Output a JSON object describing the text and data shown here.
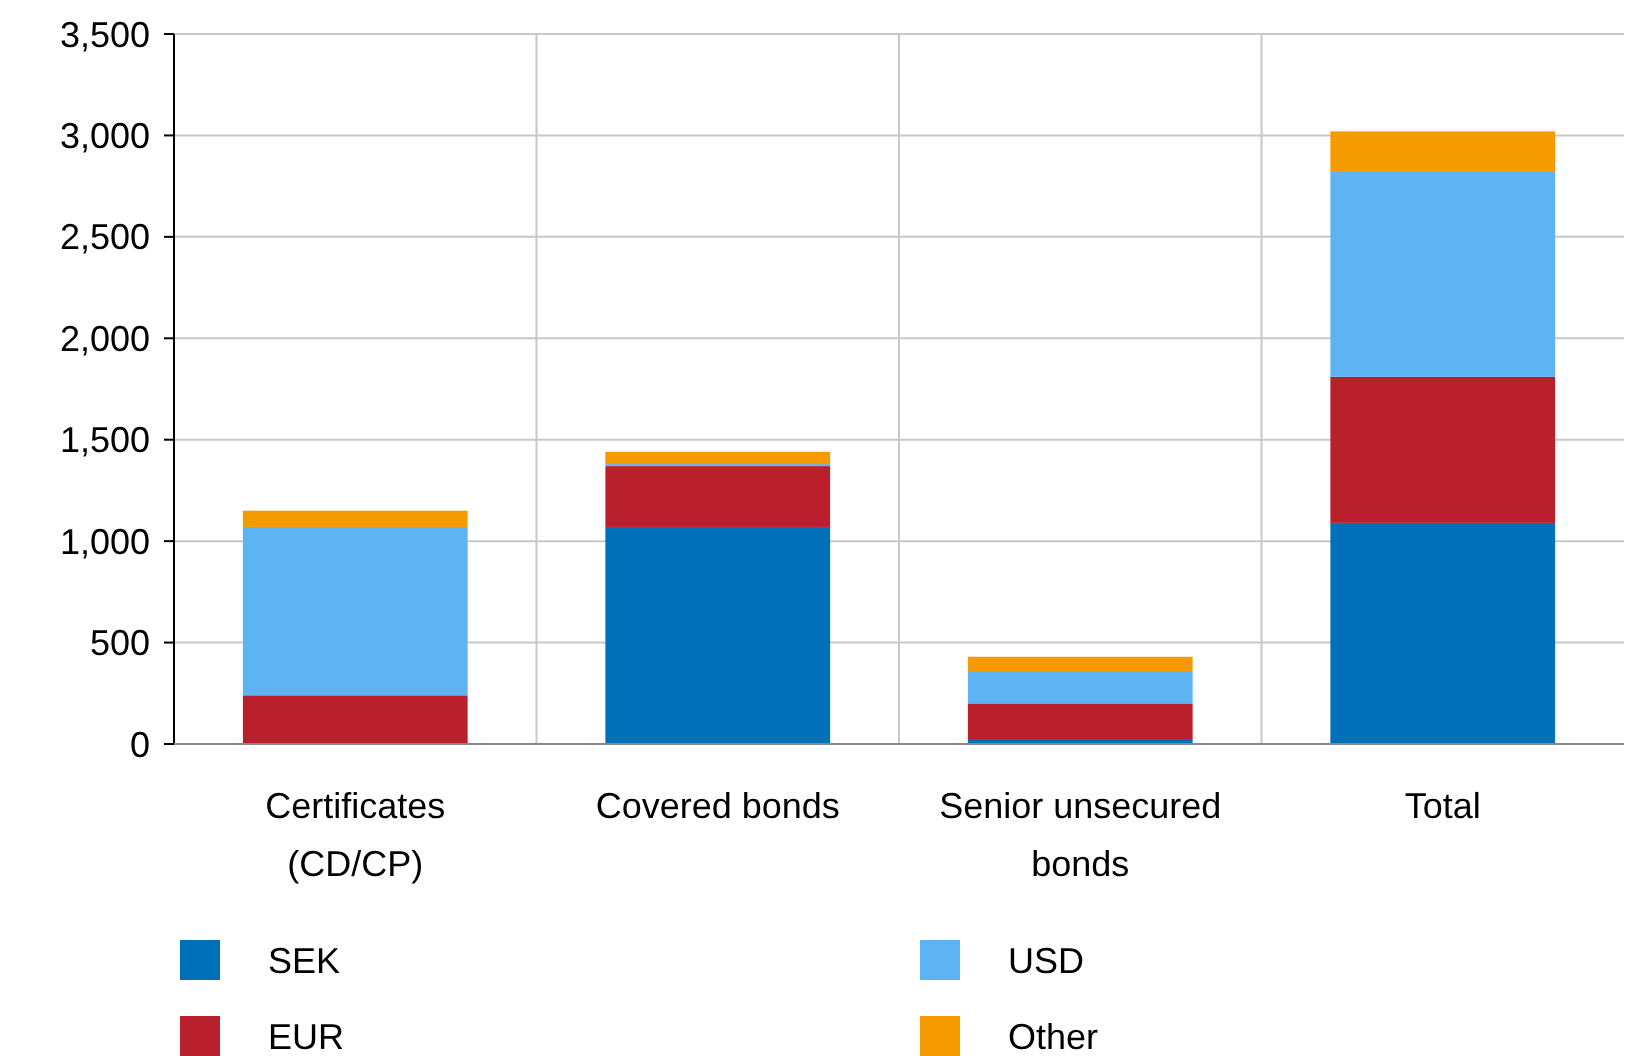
{
  "chart_data": {
    "type": "bar",
    "stacked": true,
    "categories": [
      "Certificates (CD/CP)",
      "Covered bonds",
      "Senior unsecured bonds",
      "Total"
    ],
    "series": [
      {
        "name": "SEK",
        "color": "#0070b8",
        "values": [
          0,
          1070,
          20,
          1090
        ]
      },
      {
        "name": "EUR",
        "color": "#ba202c",
        "values": [
          240,
          300,
          180,
          720
        ]
      },
      {
        "name": "USD",
        "color": "#5eb3f2",
        "values": [
          830,
          10,
          160,
          1010
        ]
      },
      {
        "name": "Other",
        "color": "#f59b00",
        "values": [
          80,
          60,
          70,
          200
        ]
      }
    ],
    "ylim": [
      0,
      3500
    ],
    "yticks": [
      {
        "value": 0,
        "label": "0"
      },
      {
        "value": 500,
        "label": "500"
      },
      {
        "value": 1000,
        "label": "1,000"
      },
      {
        "value": 1500,
        "label": "1,500"
      },
      {
        "value": 2000,
        "label": "2,000"
      },
      {
        "value": 2500,
        "label": "2,500"
      },
      {
        "value": 3000,
        "label": "3,000"
      },
      {
        "value": 3500,
        "label": "3,500"
      }
    ],
    "grid": true,
    "legend": "bottom"
  }
}
